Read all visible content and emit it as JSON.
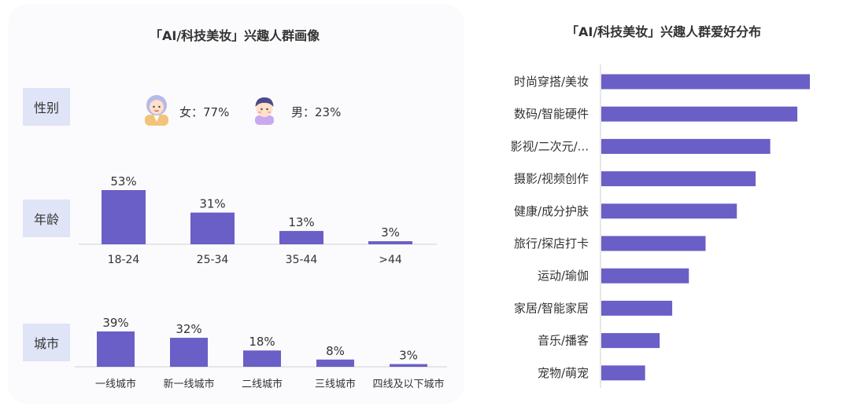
{
  "left_title": "「AI/科技美妆」兴趣人群画像",
  "right_title": "「AI/科技美妆」兴趣人群爱好分布",
  "labels": {
    "gender": "性别",
    "age": "年龄",
    "city": "城市"
  },
  "gender": {
    "female_text": "女：77%",
    "male_text": "男：23%",
    "female_icon": "female-avatar-icon",
    "male_icon": "male-avatar-icon"
  },
  "colors": {
    "bar": "#6a5fc6",
    "label_bg": "#dfe4f7",
    "panel_bg": "#fbfbfd"
  },
  "chart_data": [
    {
      "type": "bar",
      "categories": [
        "18-24",
        "25-34",
        "35-44",
        ">44"
      ],
      "values": [
        53,
        31,
        13,
        3
      ],
      "data_labels": [
        "53%",
        "31%",
        "13%",
        "3%"
      ]
    },
    {
      "type": "bar",
      "categories": [
        "一线城市",
        "新一线城市",
        "二线城市",
        "三线城市",
        "四线及以下城市"
      ],
      "values": [
        39,
        32,
        18,
        8,
        3
      ],
      "data_labels": [
        "39%",
        "32%",
        "18%",
        "8%",
        "3%"
      ]
    },
    {
      "type": "bar",
      "orientation": "horizontal",
      "categories": [
        "时尚穿搭/美妆",
        "数码/智能硬件",
        "影视/二次元/...",
        "摄影/视频创作",
        "健康/成分护肤",
        "旅行/探店打卡",
        "运动/瑜伽",
        "家居/智能家居",
        "音乐/播客",
        "宠物/萌宠"
      ],
      "values": [
        100,
        94,
        81,
        74,
        65,
        50,
        42,
        34,
        28,
        21
      ]
    }
  ]
}
